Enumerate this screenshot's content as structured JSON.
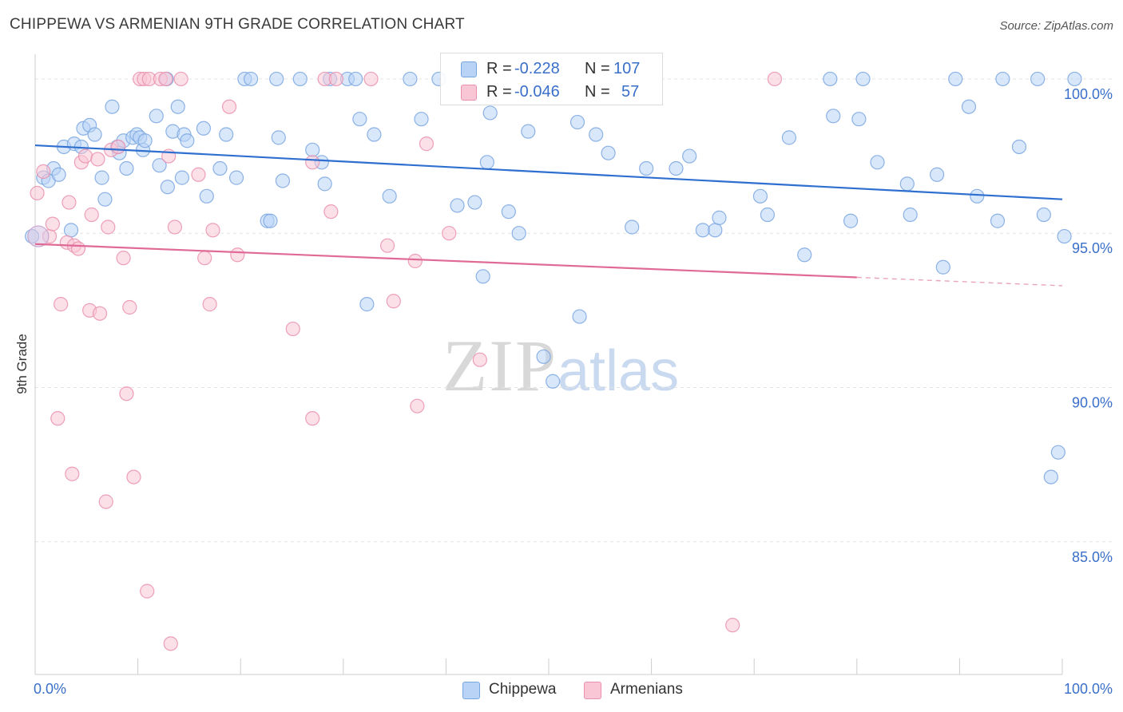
{
  "header": {
    "title": "CHIPPEWA VS ARMENIAN 9TH GRADE CORRELATION CHART",
    "source": "Source: ZipAtlas.com"
  },
  "watermark": {
    "zip": "ZIP",
    "atlas": "atlas"
  },
  "legend": {
    "rows": [
      {
        "r_label": "R =",
        "r_value": "-0.228",
        "n_label": "N =",
        "n_value": "107",
        "color": "#b8d3f5",
        "stroke": "#7aa6e0"
      },
      {
        "r_label": "R =",
        "r_value": "-0.046",
        "n_label": "N =",
        "n_value": "57",
        "color": "#f9c6d6",
        "stroke": "#ea8fae"
      }
    ],
    "bottom": [
      {
        "label": "Chippewa",
        "color": "#b8d3f5",
        "stroke": "#7aa6e0"
      },
      {
        "label": "Armenians",
        "color": "#f9c6d6",
        "stroke": "#ea8fae"
      }
    ]
  },
  "chart_data": {
    "type": "scatter",
    "ylabel": "9th Grade",
    "xlabel": "",
    "xlim": [
      0,
      100
    ],
    "ylim": [
      80.7,
      100.8
    ],
    "x_tick_labels": [
      "0.0%",
      "100.0%"
    ],
    "y_ticks": [
      {
        "value": 100,
        "label": "100.0%"
      },
      {
        "value": 95,
        "label": "95.0%"
      },
      {
        "value": 90,
        "label": "90.0%"
      },
      {
        "value": 85,
        "label": "85.0%"
      }
    ],
    "grid": true,
    "legend_position": "top-center",
    "series": [
      {
        "name": "Chippewa",
        "color": "#7aa6e0",
        "fill": "#b8d3f5",
        "trend": {
          "x": [
            0,
            100
          ],
          "y": [
            97.85,
            96.1
          ],
          "dashed_from": null
        },
        "points": [
          [
            0.8,
            96.8
          ],
          [
            1.3,
            96.7
          ],
          [
            1.8,
            97.1
          ],
          [
            2.3,
            96.9
          ],
          [
            2.8,
            97.8
          ],
          [
            3.5,
            95.1
          ],
          [
            3.8,
            97.9
          ],
          [
            4.5,
            97.8
          ],
          [
            4.7,
            98.4
          ],
          [
            5.3,
            98.5
          ],
          [
            5.8,
            98.2
          ],
          [
            6.5,
            96.8
          ],
          [
            6.8,
            96.1
          ],
          [
            7.5,
            99.1
          ],
          [
            8.0,
            97.8
          ],
          [
            8.2,
            97.6
          ],
          [
            8.6,
            98.0
          ],
          [
            8.9,
            97.1
          ],
          [
            9.5,
            98.1
          ],
          [
            9.9,
            98.2
          ],
          [
            10.2,
            98.1
          ],
          [
            10.5,
            97.7
          ],
          [
            10.7,
            98.0
          ],
          [
            11.8,
            98.8
          ],
          [
            12.1,
            97.2
          ],
          [
            12.8,
            100.0
          ],
          [
            12.9,
            96.5
          ],
          [
            13.4,
            98.3
          ],
          [
            13.9,
            99.1
          ],
          [
            14.3,
            96.8
          ],
          [
            14.5,
            98.2
          ],
          [
            14.8,
            98.0
          ],
          [
            16.4,
            98.4
          ],
          [
            16.7,
            96.2
          ],
          [
            18.0,
            97.1
          ],
          [
            18.6,
            98.2
          ],
          [
            19.6,
            96.8
          ],
          [
            20.4,
            100.0
          ],
          [
            21.0,
            100.0
          ],
          [
            22.6,
            95.4
          ],
          [
            22.9,
            95.4
          ],
          [
            23.5,
            100.0
          ],
          [
            23.7,
            98.1
          ],
          [
            24.1,
            96.7
          ],
          [
            25.8,
            100.0
          ],
          [
            27.0,
            97.7
          ],
          [
            27.9,
            97.3
          ],
          [
            28.2,
            96.6
          ],
          [
            28.7,
            100.0
          ],
          [
            30.4,
            100.0
          ],
          [
            31.2,
            100.0
          ],
          [
            31.6,
            98.7
          ],
          [
            32.3,
            92.7
          ],
          [
            33.0,
            98.2
          ],
          [
            34.5,
            96.2
          ],
          [
            36.5,
            100.0
          ],
          [
            37.6,
            98.7
          ],
          [
            39.3,
            100.0
          ],
          [
            41.1,
            95.9
          ],
          [
            42.8,
            96.0
          ],
          [
            43.6,
            93.6
          ],
          [
            44.0,
            97.3
          ],
          [
            44.3,
            98.9
          ],
          [
            46.1,
            95.7
          ],
          [
            47.1,
            95.0
          ],
          [
            48.0,
            98.3
          ],
          [
            49.1,
            99.7
          ],
          [
            49.5,
            91.0
          ],
          [
            50.4,
            90.2
          ],
          [
            52.8,
            98.6
          ],
          [
            53.0,
            92.3
          ],
          [
            54.6,
            98.2
          ],
          [
            55.8,
            97.6
          ],
          [
            58.1,
            95.2
          ],
          [
            59.5,
            97.1
          ],
          [
            62.4,
            97.1
          ],
          [
            63.7,
            97.5
          ],
          [
            65.0,
            95.1
          ],
          [
            66.2,
            95.1
          ],
          [
            66.6,
            95.5
          ],
          [
            70.6,
            96.2
          ],
          [
            71.3,
            95.6
          ],
          [
            73.4,
            98.1
          ],
          [
            74.9,
            94.3
          ],
          [
            77.4,
            100.0
          ],
          [
            77.7,
            98.8
          ],
          [
            79.4,
            95.4
          ],
          [
            80.2,
            98.7
          ],
          [
            80.6,
            100.0
          ],
          [
            82.0,
            97.3
          ],
          [
            84.9,
            96.6
          ],
          [
            85.2,
            95.6
          ],
          [
            87.8,
            96.9
          ],
          [
            88.4,
            93.9
          ],
          [
            89.6,
            100.0
          ],
          [
            90.9,
            99.1
          ],
          [
            91.7,
            96.2
          ],
          [
            93.7,
            95.4
          ],
          [
            94.2,
            100.0
          ],
          [
            95.8,
            97.8
          ],
          [
            97.6,
            100.0
          ],
          [
            98.2,
            95.6
          ],
          [
            98.9,
            87.1
          ],
          [
            99.6,
            87.9
          ],
          [
            100.2,
            94.9
          ],
          [
            101.2,
            100.0
          ],
          [
            -0.3,
            94.9
          ]
        ]
      },
      {
        "name": "Armenians",
        "color": "#ea8fae",
        "fill": "#f9c6d6",
        "trend": {
          "x": [
            0,
            100
          ],
          "y": [
            94.65,
            93.3
          ],
          "dashed_from": 80
        },
        "points": [
          [
            0.2,
            96.3
          ],
          [
            0.8,
            97.0
          ],
          [
            1.4,
            94.9
          ],
          [
            1.7,
            95.3
          ],
          [
            2.2,
            89.0
          ],
          [
            2.5,
            92.7
          ],
          [
            3.1,
            94.7
          ],
          [
            3.3,
            96.0
          ],
          [
            3.6,
            87.2
          ],
          [
            3.8,
            94.6
          ],
          [
            4.2,
            94.5
          ],
          [
            4.5,
            97.3
          ],
          [
            4.9,
            97.5
          ],
          [
            5.3,
            92.5
          ],
          [
            5.5,
            95.6
          ],
          [
            6.1,
            97.4
          ],
          [
            6.3,
            92.4
          ],
          [
            6.9,
            86.3
          ],
          [
            7.1,
            95.2
          ],
          [
            7.4,
            97.7
          ],
          [
            8.1,
            97.8
          ],
          [
            8.6,
            94.2
          ],
          [
            8.9,
            89.8
          ],
          [
            9.2,
            92.6
          ],
          [
            9.6,
            87.1
          ],
          [
            10.2,
            100.0
          ],
          [
            10.6,
            100.0
          ],
          [
            10.9,
            83.4
          ],
          [
            11.1,
            100.0
          ],
          [
            12.2,
            100.0
          ],
          [
            12.7,
            100.0
          ],
          [
            13.0,
            97.5
          ],
          [
            13.2,
            81.7
          ],
          [
            13.6,
            95.2
          ],
          [
            14.2,
            100.0
          ],
          [
            15.9,
            96.9
          ],
          [
            16.5,
            94.2
          ],
          [
            17.0,
            92.7
          ],
          [
            17.3,
            95.1
          ],
          [
            18.9,
            99.1
          ],
          [
            19.7,
            94.3
          ],
          [
            25.1,
            91.9
          ],
          [
            27.0,
            97.3
          ],
          [
            27.0,
            89.0
          ],
          [
            28.2,
            100.0
          ],
          [
            28.8,
            95.7
          ],
          [
            29.3,
            100.0
          ],
          [
            32.7,
            100.0
          ],
          [
            34.3,
            94.6
          ],
          [
            34.9,
            92.8
          ],
          [
            37.0,
            94.1
          ],
          [
            37.2,
            89.4
          ],
          [
            38.1,
            97.9
          ],
          [
            40.3,
            95.0
          ],
          [
            43.3,
            90.9
          ],
          [
            67.9,
            82.3
          ],
          [
            72.0,
            100.0
          ]
        ]
      }
    ]
  }
}
